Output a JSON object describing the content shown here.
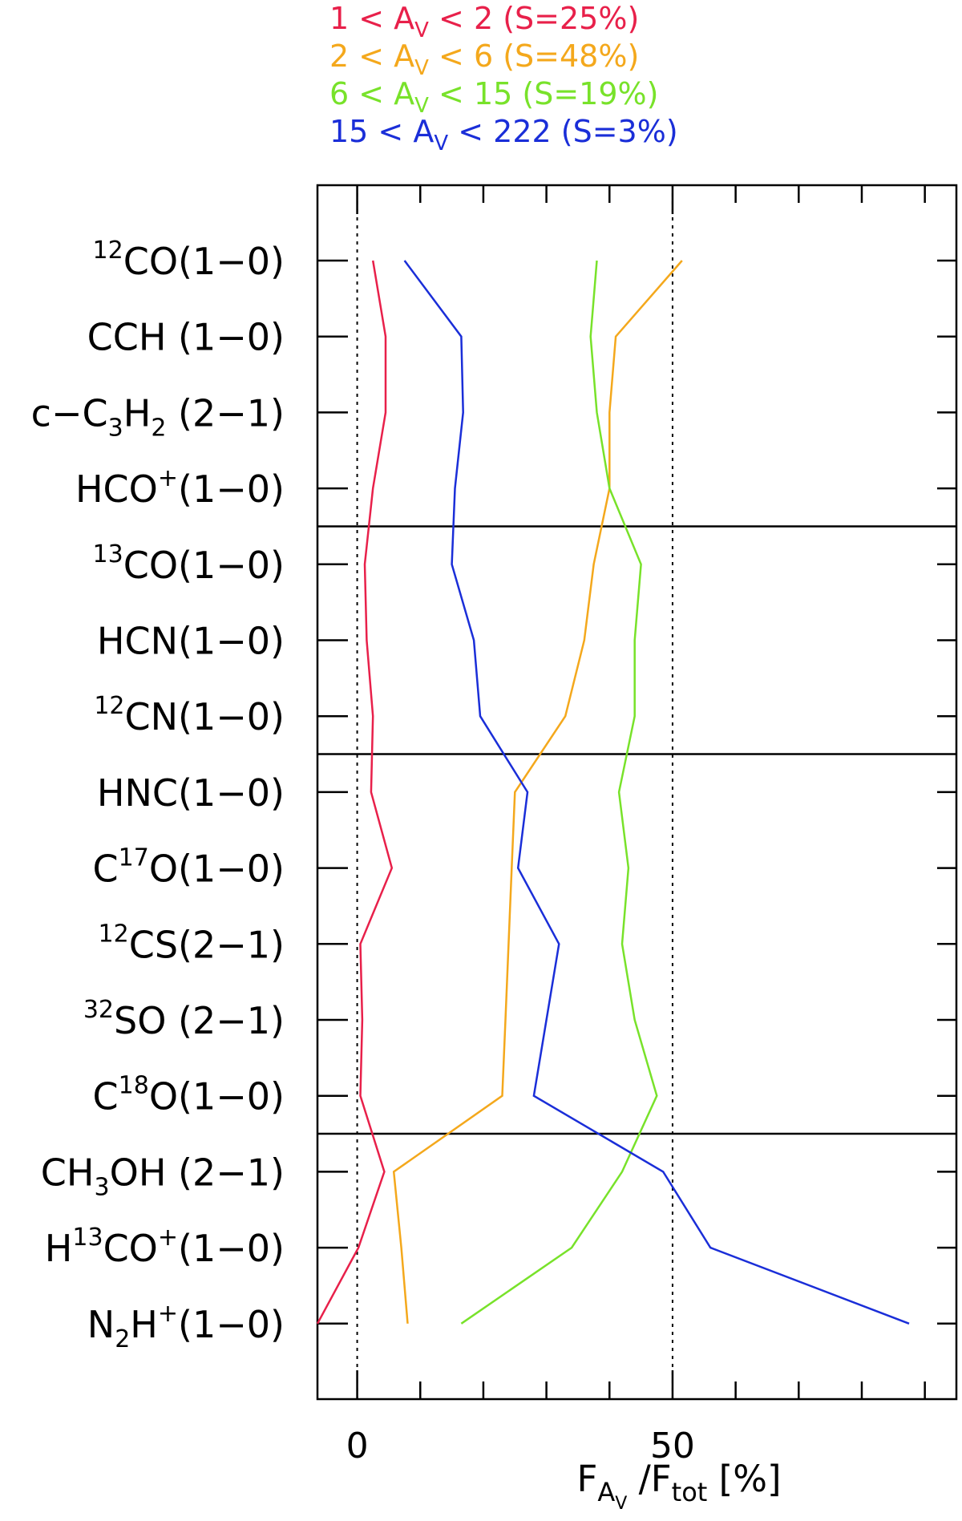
{
  "chart_data": {
    "type": "line",
    "orientation": "horizontal-values",
    "xlabel_main": "F",
    "xlabel_sub": "A",
    "xlabel_subsub": "V",
    "xlabel_rest": " /F",
    "xlabel_tot": "tot",
    "xlabel_unit": " [%]",
    "xlim": [
      -6.3,
      95
    ],
    "x_ticks": [
      0,
      50
    ],
    "x_tick_labels": [
      "0",
      "50"
    ],
    "x_minor_step": 10,
    "reference_lines": [
      0,
      50
    ],
    "group_separators": [
      3.5,
      6.5,
      11.5
    ],
    "grid": false,
    "legend_position": "top",
    "categories": [
      {
        "pre": "",
        "sup1": "12",
        "core": "CO",
        "sub": "",
        "core2": "",
        "sup2": "",
        "post": "(1−0)"
      },
      {
        "pre": "",
        "sup1": "",
        "core": "CCH ",
        "sub": "",
        "core2": "",
        "sup2": "",
        "post": "(1−0)"
      },
      {
        "pre": "",
        "sup1": "",
        "core": "c−C",
        "sub": "3",
        "core2": "H",
        "sub2": "2",
        "sup2": "",
        "post": " (2−1)"
      },
      {
        "pre": "",
        "sup1": "",
        "core": "HCO",
        "sub": "",
        "core2": "",
        "sup2": "+",
        "post": "(1−0)"
      },
      {
        "pre": "",
        "sup1": "13",
        "core": "CO",
        "sub": "",
        "core2": "",
        "sup2": "",
        "post": "(1−0)"
      },
      {
        "pre": "",
        "sup1": "",
        "core": "HCN",
        "sub": "",
        "core2": "",
        "sup2": "",
        "post": "(1−0)"
      },
      {
        "pre": "",
        "sup1": "12",
        "core": "CN",
        "sub": "",
        "core2": "",
        "sup2": "",
        "post": "(1−0)"
      },
      {
        "pre": "",
        "sup1": "",
        "core": "HNC",
        "sub": "",
        "core2": "",
        "sup2": "",
        "post": "(1−0)"
      },
      {
        "pre": "C",
        "sup1": "17",
        "core": "O",
        "sub": "",
        "core2": "",
        "sup2": "",
        "post": "(1−0)"
      },
      {
        "pre": "",
        "sup1": "12",
        "core": "CS",
        "sub": "",
        "core2": "",
        "sup2": "",
        "post": "(2−1)"
      },
      {
        "pre": "",
        "sup1": "32",
        "core": "SO ",
        "sub": "",
        "core2": "",
        "sup2": "",
        "post": "(2−1)"
      },
      {
        "pre": "C",
        "sup1": "18",
        "core": "O",
        "sub": "",
        "core2": "",
        "sup2": "",
        "post": "(1−0)"
      },
      {
        "pre": "",
        "sup1": "",
        "core": "CH",
        "sub": "3",
        "core2": "OH ",
        "sub2": "",
        "sup2": "",
        "post": "(2−1)"
      },
      {
        "pre": "H",
        "sup1": "13",
        "core": "CO",
        "sub": "",
        "core2": "",
        "sup2": "+",
        "post": "(1−0)"
      },
      {
        "pre": "",
        "sup1": "",
        "core": "N",
        "sub": "2",
        "core2": "H",
        "sub2": "",
        "sup2": "+",
        "post": "(1−0)"
      }
    ],
    "series": [
      {
        "legend": {
          "a": "1 < A",
          "sub": "V",
          "b": " < 2 (S=25%)"
        },
        "color": "#e8204a",
        "values": [
          2.5,
          4.5,
          4.5,
          2.5,
          1.2,
          1.5,
          2.5,
          2.2,
          5.5,
          0.5,
          0.8,
          0.5,
          4.3,
          0.2,
          -6.3
        ]
      },
      {
        "legend": {
          "a": "2 < A",
          "sub": "V",
          "b": " < 6 (S=48%)"
        },
        "color": "#f4a81c",
        "values": [
          51.5,
          41,
          40,
          40,
          37.5,
          36,
          33,
          25,
          24.5,
          24,
          23.5,
          23,
          5.8,
          7,
          8
        ]
      },
      {
        "legend": {
          "a": "6 < A",
          "sub": "V",
          "b": " < 15 (S=19%)"
        },
        "color": "#78e22a",
        "values": [
          38,
          37,
          38,
          40,
          45,
          44,
          44,
          41.5,
          43,
          42,
          44,
          47.5,
          42,
          34,
          16.5
        ]
      },
      {
        "legend": {
          "a": "15 < A",
          "sub": "V",
          "b": " < 222 (S=3%)"
        },
        "color": "#1a2ed8",
        "values": [
          7.5,
          16.5,
          16.8,
          15.5,
          15,
          18.5,
          19.5,
          27,
          25.5,
          32,
          30,
          28,
          48.5,
          56,
          87.5
        ]
      }
    ]
  }
}
